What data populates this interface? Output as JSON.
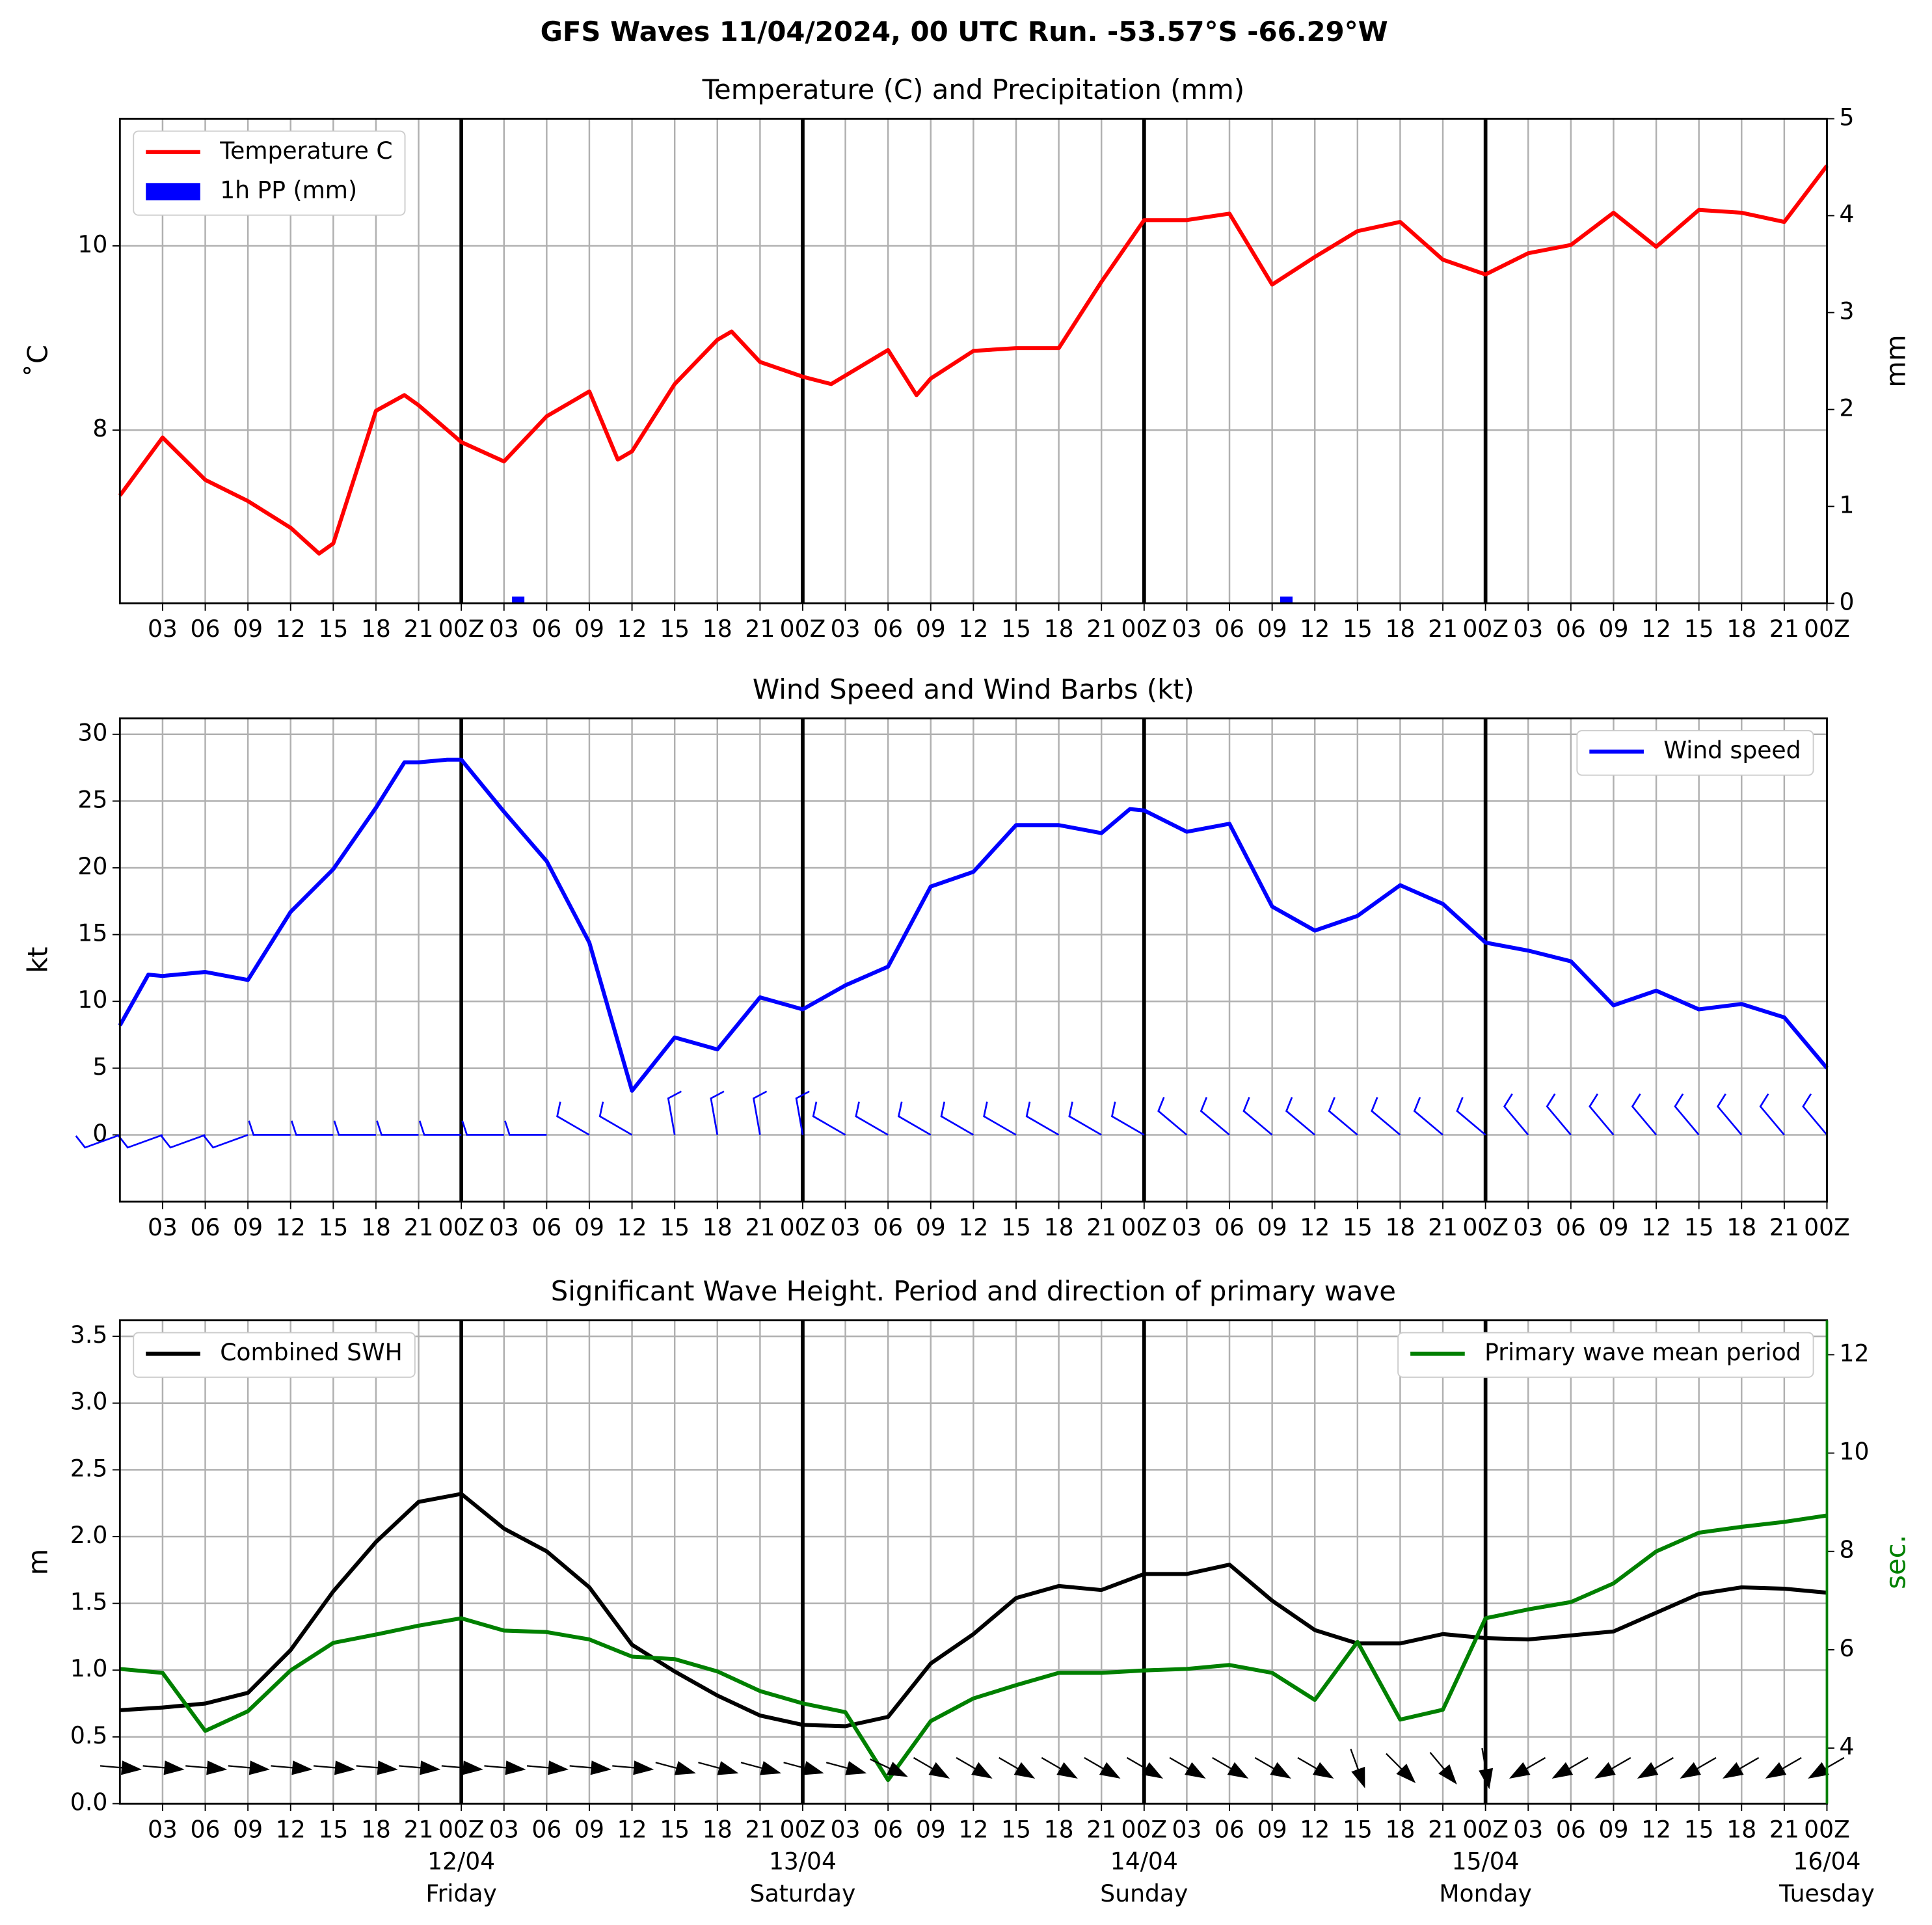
{
  "title": "GFS Waves 11/04/2024, 00 UTC Run. -53.57°S -66.29°W",
  "chart_data": [
    {
      "type": "line",
      "title": "Temperature (C) and Precipitation (mm)",
      "ylabel": "˚C",
      "y2label": "mm",
      "xlim": [
        0,
        120
      ],
      "xticks": [
        {
          "value": 3,
          "label": "03"
        },
        {
          "value": 6,
          "label": "06"
        },
        {
          "value": 9,
          "label": "09"
        },
        12,
        15,
        18,
        21,
        {
          "value": 24,
          "label": "00Z"
        },
        {
          "value": 27,
          "label": "03"
        },
        {
          "value": 30,
          "label": "06"
        },
        {
          "value": 33,
          "label": "09"
        },
        {
          "value": 36,
          "label": "12"
        },
        {
          "value": 39,
          "label": "15"
        },
        {
          "value": 42,
          "label": "18"
        },
        {
          "value": 45,
          "label": "21"
        },
        {
          "value": 48,
          "label": "00Z"
        },
        {
          "value": 51,
          "label": "03"
        },
        {
          "value": 54,
          "label": "06"
        },
        {
          "value": 57,
          "label": "09"
        },
        {
          "value": 60,
          "label": "12"
        },
        {
          "value": 63,
          "label": "15"
        },
        {
          "value": 66,
          "label": "18"
        },
        {
          "value": 69,
          "label": "21"
        },
        {
          "value": 72,
          "label": "00Z"
        },
        {
          "value": 75,
          "label": "03"
        },
        {
          "value": 78,
          "label": "06"
        },
        {
          "value": 81,
          "label": "09"
        },
        {
          "value": 84,
          "label": "12"
        },
        {
          "value": 87,
          "label": "15"
        },
        {
          "value": 90,
          "label": "18"
        },
        {
          "value": 93,
          "label": "21"
        },
        {
          "value": 96,
          "label": "00Z"
        },
        {
          "value": 99,
          "label": "03"
        },
        {
          "value": 102,
          "label": "06"
        },
        {
          "value": 105,
          "label": "09"
        },
        {
          "value": 108,
          "label": "12"
        },
        {
          "value": 111,
          "label": "15"
        },
        {
          "value": 114,
          "label": "18"
        },
        {
          "value": 117,
          "label": "21"
        },
        {
          "value": 120,
          "label": "00Z"
        }
      ],
      "day_lines": [
        24,
        48,
        72,
        96
      ],
      "ylim": [
        6.12,
        11.38
      ],
      "yticks": [
        8,
        10
      ],
      "y2lim": [
        0,
        5
      ],
      "y2ticks": [
        0,
        1,
        2,
        3,
        4,
        5
      ],
      "grid": true,
      "legend": "upper left",
      "series": [
        {
          "name": "Temperature C",
          "color": "#ff0000",
          "x": [
            0,
            3,
            6,
            9,
            12,
            14,
            15,
            18,
            20,
            21,
            24,
            27,
            30,
            33,
            35,
            36,
            39,
            42,
            43,
            45,
            48,
            50,
            54,
            56,
            57,
            60,
            63,
            66,
            69,
            72,
            75,
            78,
            81,
            84,
            87,
            90,
            93,
            96,
            99,
            102,
            105,
            108,
            111,
            114,
            117,
            120
          ],
          "values": [
            7.29,
            7.92,
            7.46,
            7.23,
            6.94,
            6.66,
            6.77,
            8.21,
            8.38,
            8.27,
            7.87,
            7.66,
            8.15,
            8.42,
            7.68,
            7.77,
            8.5,
            8.98,
            9.07,
            8.74,
            8.58,
            8.5,
            8.87,
            8.38,
            8.56,
            8.86,
            8.89,
            8.89,
            9.61,
            10.28,
            10.28,
            10.35,
            9.58,
            9.88,
            10.16,
            10.26,
            9.85,
            9.69,
            9.92,
            10.01,
            10.36,
            9.99,
            10.39,
            10.36,
            10.26,
            10.87
          ]
        },
        {
          "name": "1h PP (mm)",
          "type": "bar",
          "axis": "y2",
          "color": "#0000ff",
          "x": [
            28,
            82
          ],
          "values": [
            0.07,
            0.07
          ]
        }
      ]
    },
    {
      "type": "line",
      "title": "Wind Speed and Wind Barbs (kt)",
      "ylabel": "kt",
      "xlim": [
        0,
        120
      ],
      "xticks": [
        {
          "value": 3,
          "label": "03"
        },
        {
          "value": 6,
          "label": "06"
        },
        {
          "value": 9,
          "label": "09"
        },
        12,
        15,
        18,
        21,
        {
          "value": 24,
          "label": "00Z"
        },
        {
          "value": 27,
          "label": "03"
        },
        {
          "value": 30,
          "label": "06"
        },
        {
          "value": 33,
          "label": "09"
        },
        {
          "value": 36,
          "label": "12"
        },
        {
          "value": 39,
          "label": "15"
        },
        {
          "value": 42,
          "label": "18"
        },
        {
          "value": 45,
          "label": "21"
        },
        {
          "value": 48,
          "label": "00Z"
        },
        {
          "value": 51,
          "label": "03"
        },
        {
          "value": 54,
          "label": "06"
        },
        {
          "value": 57,
          "label": "09"
        },
        {
          "value": 60,
          "label": "12"
        },
        {
          "value": 63,
          "label": "15"
        },
        {
          "value": 66,
          "label": "18"
        },
        {
          "value": 69,
          "label": "21"
        },
        {
          "value": 72,
          "label": "00Z"
        },
        {
          "value": 75,
          "label": "03"
        },
        {
          "value": 78,
          "label": "06"
        },
        {
          "value": 81,
          "label": "09"
        },
        {
          "value": 84,
          "label": "12"
        },
        {
          "value": 87,
          "label": "15"
        },
        {
          "value": 90,
          "label": "18"
        },
        {
          "value": 93,
          "label": "21"
        },
        {
          "value": 96,
          "label": "00Z"
        },
        {
          "value": 99,
          "label": "03"
        },
        {
          "value": 102,
          "label": "06"
        },
        {
          "value": 105,
          "label": "09"
        },
        {
          "value": 108,
          "label": "12"
        },
        {
          "value": 111,
          "label": "15"
        },
        {
          "value": 114,
          "label": "18"
        },
        {
          "value": 117,
          "label": "21"
        },
        {
          "value": 120,
          "label": "00Z"
        }
      ],
      "day_lines": [
        24,
        48,
        72,
        96
      ],
      "ylim": [
        -5,
        31.2
      ],
      "yticks": [
        0,
        5,
        10,
        15,
        20,
        25,
        30
      ],
      "grid": true,
      "legend": "upper right",
      "series": [
        {
          "name": "Wind speed",
          "color": "#0000ff",
          "x": [
            0,
            2,
            3,
            6,
            9,
            12,
            15,
            18,
            20,
            21,
            23,
            24,
            27,
            30,
            33,
            36,
            39,
            42,
            45,
            48,
            51,
            54,
            57,
            60,
            63,
            66,
            69,
            71,
            72,
            75,
            78,
            81,
            84,
            87,
            90,
            93,
            96,
            99,
            102,
            105,
            108,
            111,
            114,
            117,
            120
          ],
          "values": [
            8.2,
            12.0,
            11.9,
            12.2,
            11.6,
            16.7,
            19.9,
            24.5,
            27.9,
            27.9,
            28.1,
            28.1,
            24.2,
            20.5,
            14.4,
            3.3,
            7.3,
            6.4,
            10.3,
            9.4,
            11.2,
            12.6,
            18.6,
            19.7,
            23.2,
            23.2,
            22.6,
            24.4,
            24.3,
            22.7,
            23.3,
            17.1,
            15.3,
            16.4,
            18.7,
            17.3,
            14.4,
            13.8,
            13.0,
            9.7,
            10.8,
            9.4,
            9.8,
            8.8,
            5.0
          ]
        }
      ],
      "barbs": {
        "color": "#0000ff",
        "x": [
          0,
          3,
          6,
          9,
          12,
          15,
          18,
          21,
          24,
          27,
          30,
          33,
          36,
          39,
          42,
          45,
          48,
          51,
          54,
          57,
          60,
          63,
          66,
          69,
          72,
          75,
          78,
          81,
          84,
          87,
          90,
          93,
          96,
          99,
          102,
          105,
          108,
          111,
          114,
          117,
          120
        ],
        "direction": [
          250,
          250,
          250,
          250,
          270,
          270,
          270,
          270,
          270,
          270,
          270,
          300,
          300,
          350,
          350,
          350,
          350,
          300,
          300,
          300,
          300,
          300,
          300,
          300,
          300,
          310,
          310,
          310,
          310,
          310,
          310,
          310,
          310,
          320,
          320,
          320,
          320,
          320,
          320,
          320,
          320
        ]
      }
    },
    {
      "type": "line",
      "title": "Significant Wave Height. Period and direction of primary wave",
      "ylabel": "m",
      "y2label": "sec.",
      "y2color": "#008000",
      "xlim": [
        0,
        120
      ],
      "xticks": [
        {
          "value": 3,
          "label": "03"
        },
        {
          "value": 6,
          "label": "06"
        },
        {
          "value": 9,
          "label": "09"
        },
        12,
        15,
        18,
        21,
        {
          "value": 24,
          "label": "00Z",
          "date": "12/04",
          "day": "Friday"
        },
        {
          "value": 27,
          "label": "03"
        },
        {
          "value": 30,
          "label": "06"
        },
        {
          "value": 33,
          "label": "09"
        },
        {
          "value": 36,
          "label": "12"
        },
        {
          "value": 39,
          "label": "15"
        },
        {
          "value": 42,
          "label": "18"
        },
        {
          "value": 45,
          "label": "21"
        },
        {
          "value": 48,
          "label": "00Z",
          "date": "13/04",
          "day": "Saturday"
        },
        {
          "value": 51,
          "label": "03"
        },
        {
          "value": 54,
          "label": "06"
        },
        {
          "value": 57,
          "label": "09"
        },
        {
          "value": 60,
          "label": "12"
        },
        {
          "value": 63,
          "label": "15"
        },
        {
          "value": 66,
          "label": "18"
        },
        {
          "value": 69,
          "label": "21"
        },
        {
          "value": 72,
          "label": "00Z",
          "date": "14/04",
          "day": "Sunday"
        },
        {
          "value": 75,
          "label": "03"
        },
        {
          "value": 78,
          "label": "06"
        },
        {
          "value": 81,
          "label": "09"
        },
        {
          "value": 84,
          "label": "12"
        },
        {
          "value": 87,
          "label": "15"
        },
        {
          "value": 90,
          "label": "18"
        },
        {
          "value": 93,
          "label": "21"
        },
        {
          "value": 96,
          "label": "00Z",
          "date": "15/04",
          "day": "Monday"
        },
        {
          "value": 99,
          "label": "03"
        },
        {
          "value": 102,
          "label": "06"
        },
        {
          "value": 105,
          "label": "09"
        },
        {
          "value": 108,
          "label": "12"
        },
        {
          "value": 111,
          "label": "15"
        },
        {
          "value": 114,
          "label": "18"
        },
        {
          "value": 117,
          "label": "21"
        },
        {
          "value": 120,
          "label": "00Z",
          "date": "16/04",
          "day": "Tuesday"
        }
      ],
      "day_lines": [
        24,
        48,
        72,
        96
      ],
      "ylim": [
        0,
        3.62
      ],
      "yticks": [
        {
          "value": 0,
          "label": "0.0"
        },
        0.5,
        {
          "value": 1,
          "label": "1.0"
        },
        1.5,
        {
          "value": 2,
          "label": "2.0"
        },
        2.5,
        {
          "value": 3,
          "label": "3.0"
        },
        3.5
      ],
      "y2lim": [
        2.87,
        12.7
      ],
      "y2ticks": [
        4,
        6,
        8,
        10,
        12
      ],
      "grid": true,
      "x": [
        0,
        3,
        6,
        9,
        12,
        15,
        18,
        21,
        24,
        27,
        30,
        33,
        36,
        39,
        42,
        45,
        48,
        51,
        54,
        57,
        60,
        63,
        66,
        69,
        72,
        75,
        78,
        81,
        84,
        87,
        90,
        93,
        96,
        99,
        102,
        105,
        108,
        111,
        114,
        117,
        120
      ],
      "series": [
        {
          "name": "Combined SWH",
          "color": "#000000",
          "legend": "upper left",
          "values": [
            0.7,
            0.72,
            0.75,
            0.83,
            1.15,
            1.59,
            1.96,
            2.26,
            2.32,
            2.06,
            1.89,
            1.62,
            1.19,
            0.99,
            0.81,
            0.66,
            0.59,
            0.58,
            0.65,
            1.05,
            1.27,
            1.54,
            1.63,
            1.6,
            1.72,
            1.72,
            1.79,
            1.52,
            1.3,
            1.2,
            1.2,
            1.27,
            1.24,
            1.23,
            1.26,
            1.29,
            1.43,
            1.57,
            1.62,
            1.61,
            1.58
          ]
        },
        {
          "name": "Primary wave mean period",
          "color": "#008000",
          "axis": "y2",
          "legend": "upper right",
          "values": [
            5.61,
            5.53,
            4.35,
            4.75,
            5.58,
            6.14,
            6.31,
            6.49,
            6.64,
            6.39,
            6.36,
            6.21,
            5.86,
            5.81,
            5.56,
            5.16,
            4.91,
            4.73,
            3.35,
            4.55,
            5.01,
            5.28,
            5.53,
            5.53,
            5.58,
            5.61,
            5.69,
            5.53,
            4.98,
            6.16,
            4.58,
            4.78,
            6.64,
            6.82,
            6.97,
            7.35,
            8.0,
            8.38,
            8.5,
            8.6,
            8.73
          ]
        }
      ],
      "arrows": {
        "color": "#000000",
        "direction": [
          275,
          275,
          275,
          275,
          275,
          275,
          275,
          275,
          275,
          275,
          275,
          275,
          275,
          285,
          285,
          285,
          285,
          285,
          295,
          300,
          300,
          300,
          300,
          300,
          300,
          300,
          300,
          300,
          300,
          340,
          315,
          320,
          350,
          60,
          60,
          60,
          60,
          60,
          60,
          60,
          60
        ]
      }
    }
  ]
}
